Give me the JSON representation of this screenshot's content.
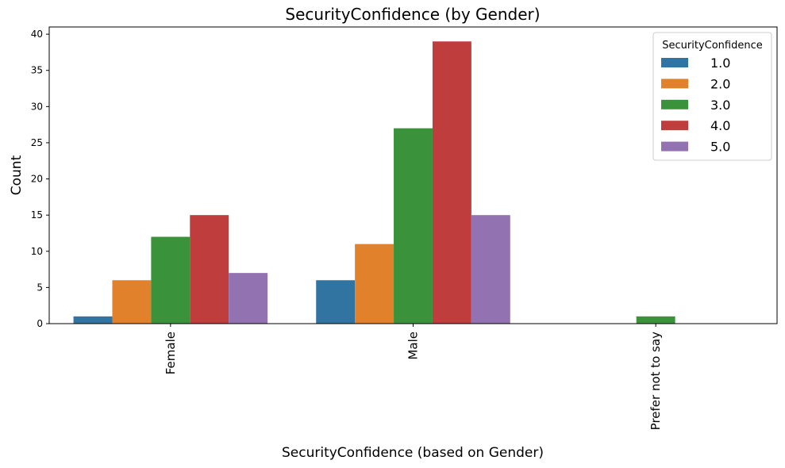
{
  "chart_data": {
    "type": "bar",
    "title": "SecurityConfidence (by Gender)",
    "xlabel": "SecurityConfidence (based on Gender)",
    "ylabel": "Count",
    "categories": [
      "Female",
      "Male",
      "Prefer not to say"
    ],
    "ylim": [
      0,
      41
    ],
    "yticks": [
      0,
      5,
      10,
      15,
      20,
      25,
      30,
      35,
      40
    ],
    "grid": false,
    "legend": {
      "title": "SecurityConfidence",
      "position": "top-right"
    },
    "series": [
      {
        "name": "1.0",
        "color": "#3274a1",
        "values": [
          1,
          6,
          0
        ]
      },
      {
        "name": "2.0",
        "color": "#e1812c",
        "values": [
          6,
          11,
          0
        ]
      },
      {
        "name": "3.0",
        "color": "#3a923a",
        "values": [
          12,
          27,
          1
        ]
      },
      {
        "name": "4.0",
        "color": "#c03d3e",
        "values": [
          15,
          39,
          0
        ]
      },
      {
        "name": "5.0",
        "color": "#9372b2",
        "values": [
          7,
          15,
          0
        ]
      }
    ]
  }
}
